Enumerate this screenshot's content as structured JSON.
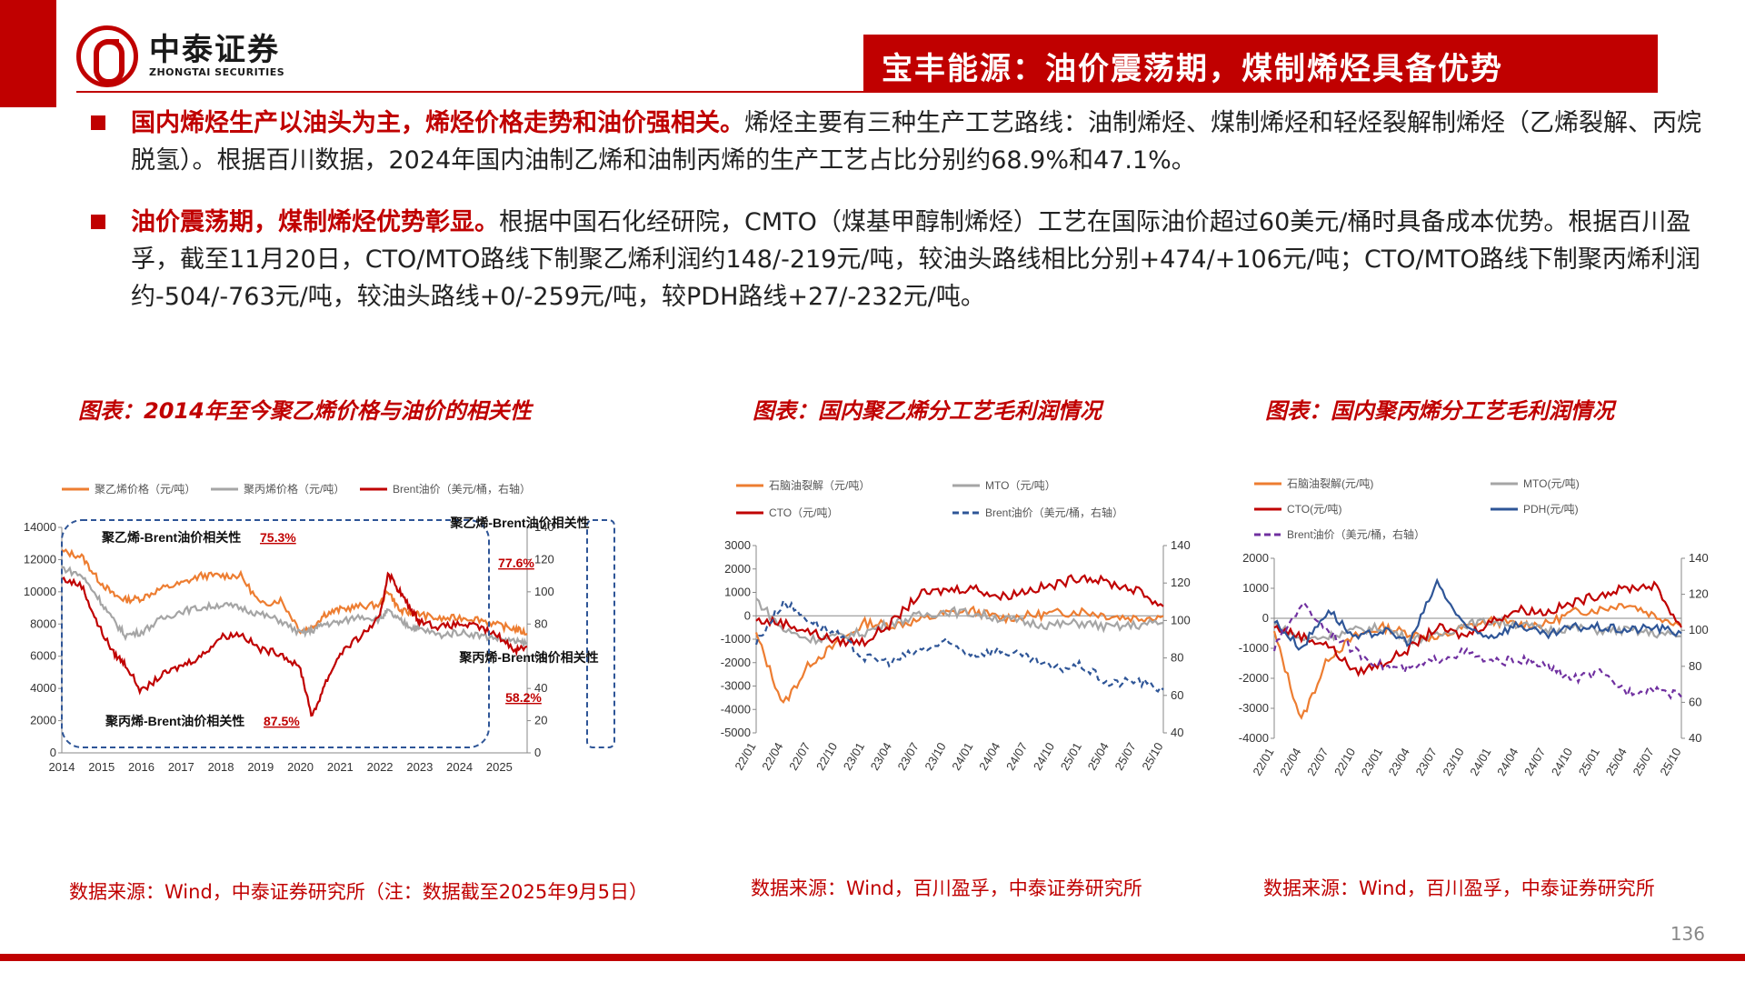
{
  "header": {
    "logo_cn": "中泰证券",
    "logo_en": "ZHONGTAI SECURITIES",
    "title": "宝丰能源：油价震荡期，煤制烯烃具备优势"
  },
  "bullets": [
    {
      "highlight": "国内烯烃生产以油头为主，烯烃价格走势和油价强相关。",
      "body": "烯烃主要有三种生产工艺路线：油制烯烃、煤制烯烃和轻烃裂解制烯烃（乙烯裂解、丙烷脱氢）。根据百川数据，2024年国内油制乙烯和油制丙烯的生产工艺占比分别约68.9%和47.1%。"
    },
    {
      "highlight": "油价震荡期，煤制烯烃优势彰显。",
      "body": "根据中国石化经研院，CMTO（煤基甲醇制烯烃）工艺在国际油价超过60美元/桶时具备成本优势。根据百川盈孚，截至11月20日，CTO/MTO路线下制聚乙烯利润约148/-219元/吨，较油头路线相比分别+474/+106元/吨；CTO/MTO路线下制聚丙烯利润约-504/-763元/吨，较油头路线+0/-259元/吨，较PDH路线+27/-232元/吨。"
    }
  ],
  "charts": [
    {
      "title": "图表：2014年至今聚乙烯价格与油价的相关性",
      "source": "数据来源：Wind，中泰证券研究所（注：数据截至2025年9月5日）"
    },
    {
      "title": "图表：国内聚乙烯分工艺毛利润情况",
      "source": "数据来源：Wind，百川盈孚，中泰证券研究所"
    },
    {
      "title": "图表：国内聚丙烯分工艺毛利润情况",
      "source": "数据来源：Wind，百川盈孚，中泰证券研究所"
    }
  ],
  "page_number": "136",
  "colors": {
    "brand_red": "#c00000",
    "orange": "#ed7d31",
    "gray": "#a5a5a5",
    "dark_red": "#c00000",
    "blue": "#2e5597",
    "purple": "#7030a0"
  },
  "chart_data": [
    {
      "type": "line",
      "legend": [
        "聚乙烯价格（元/吨）",
        "聚丙烯价格（元/吨）",
        "Brent油价（美元/桶，右轴）"
      ],
      "x_ticks": [
        "2014",
        "2015",
        "2016",
        "2017",
        "2018",
        "2019",
        "2020",
        "2021",
        "2022",
        "2023",
        "2024",
        "2025"
      ],
      "y_ticks": [
        "0",
        "2000",
        "4000",
        "6000",
        "8000",
        "10000",
        "12000",
        "14000"
      ],
      "y2_ticks": [
        "0",
        "20",
        "40",
        "60",
        "80",
        "100",
        "120",
        "140"
      ],
      "ylim": [
        0,
        14000
      ],
      "y2lim": [
        0,
        140
      ],
      "x": [
        2014,
        2014.5,
        2014.9,
        2015.3,
        2015.6,
        2016,
        2016.5,
        2017,
        2017.5,
        2018,
        2018.5,
        2019,
        2019.5,
        2020,
        2020.3,
        2020.6,
        2021,
        2021.5,
        2022,
        2022.2,
        2022.5,
        2022.8,
        2023,
        2023.5,
        2024,
        2024.5,
        2025,
        2025.4,
        2025.7
      ],
      "series": [
        {
          "name": "聚乙烯价格（元/吨）",
          "axis": "left",
          "values": [
            12500,
            12200,
            10800,
            9800,
            9500,
            9600,
            10200,
            10500,
            11000,
            11000,
            11000,
            9200,
            9500,
            7600,
            7800,
            8600,
            8900,
            9100,
            9200,
            10100,
            8800,
            8700,
            8600,
            8300,
            8400,
            8300,
            7900,
            7700,
            7400
          ]
        },
        {
          "name": "聚丙烯价格（元/吨）",
          "axis": "left",
          "values": [
            11500,
            11000,
            9700,
            8200,
            7300,
            7500,
            8300,
            8800,
            9000,
            9200,
            9000,
            8600,
            8200,
            7400,
            7600,
            8000,
            8100,
            8500,
            8300,
            8800,
            8200,
            7800,
            7700,
            7300,
            7500,
            7300,
            7100,
            6900,
            6800
          ]
        },
        {
          "name": "Brent油价（美元/桶，右轴）",
          "axis": "right",
          "values": [
            108,
            104,
            80,
            62,
            55,
            38,
            48,
            54,
            60,
            72,
            74,
            64,
            62,
            52,
            22,
            42,
            62,
            72,
            84,
            112,
            100,
            88,
            82,
            78,
            80,
            78,
            72,
            64,
            66
          ]
        }
      ],
      "annotations": [
        {
          "text": "聚乙烯-Brent油价相关性",
          "value": "75.3%"
        },
        {
          "text": "聚丙烯-Brent油价相关性",
          "value": "87.5%"
        },
        {
          "text": "聚乙烯-Brent油价相关性",
          "value": "77.6%"
        },
        {
          "text": "聚丙烯-Brent油价相关性",
          "value": "58.2%"
        }
      ]
    },
    {
      "type": "line",
      "legend": [
        "石脑油裂解（元/吨）",
        "MTO（元/吨）",
        "CTO（元/吨）",
        "Brent油价（美元/桶，右轴）"
      ],
      "x_ticks": [
        "22/01",
        "22/04",
        "22/07",
        "22/10",
        "23/01",
        "23/04",
        "23/07",
        "23/10",
        "24/01",
        "24/04",
        "24/07",
        "24/10",
        "25/01",
        "25/04",
        "25/07",
        "25/10"
      ],
      "y_ticks": [
        "3000",
        "2000",
        "1000",
        "0",
        "-1000",
        "-2000",
        "-3000",
        "-4000",
        "-5000"
      ],
      "y2_ticks": [
        "140",
        "120",
        "100",
        "80",
        "60",
        "40"
      ],
      "ylim": [
        -5000,
        3000
      ],
      "y2lim": [
        40,
        140
      ],
      "x": [
        0,
        1,
        2,
        3,
        4,
        5,
        6,
        7,
        8,
        9,
        10,
        11,
        12,
        13,
        14,
        15
      ],
      "series": [
        {
          "name": "石脑油裂解（元/吨）",
          "axis": "left",
          "values": [
            -800,
            -3800,
            -2000,
            -1200,
            -300,
            -400,
            -200,
            100,
            200,
            -100,
            0,
            100,
            200,
            0,
            -100,
            0
          ]
        },
        {
          "name": "MTO（元/吨）",
          "axis": "left",
          "values": [
            700,
            -600,
            -1000,
            -900,
            -700,
            -300,
            0,
            200,
            100,
            -100,
            -300,
            -400,
            -300,
            -500,
            -400,
            -300
          ]
        },
        {
          "name": "CTO（元/吨）",
          "axis": "left",
          "values": [
            -200,
            -300,
            -700,
            -1100,
            -1100,
            -300,
            900,
            1100,
            1200,
            800,
            1100,
            1300,
            1700,
            1400,
            1100,
            400
          ]
        },
        {
          "name": "Brent油价（美元/桶，右轴）",
          "axis": "right",
          "values": [
            88,
            110,
            100,
            92,
            80,
            78,
            84,
            88,
            82,
            84,
            80,
            74,
            76,
            66,
            68,
            63
          ]
        }
      ]
    },
    {
      "type": "line",
      "legend": [
        "石脑油裂解(元/吨)",
        "MTO(元/吨)",
        "CTO(元/吨)",
        "PDH(元/吨)",
        "Brent油价（美元/桶，右轴）"
      ],
      "x_ticks": [
        "22/01",
        "22/04",
        "22/07",
        "22/10",
        "23/01",
        "23/04",
        "23/07",
        "23/10",
        "24/01",
        "24/04",
        "24/07",
        "24/10",
        "25/01",
        "25/04",
        "25/07",
        "25/10"
      ],
      "y_ticks": [
        "2000",
        "1000",
        "0",
        "-1000",
        "-2000",
        "-3000",
        "-4000"
      ],
      "y2_ticks": [
        "140",
        "120",
        "100",
        "80",
        "60",
        "40"
      ],
      "ylim": [
        -4000,
        2000
      ],
      "y2lim": [
        40,
        140
      ],
      "x": [
        0,
        1,
        2,
        3,
        4,
        5,
        6,
        7,
        8,
        9,
        10,
        11,
        12,
        13,
        14,
        15
      ],
      "series": [
        {
          "name": "石脑油裂解(元/吨)",
          "axis": "left",
          "values": [
            -500,
            -3400,
            -1300,
            -600,
            -300,
            -500,
            -700,
            -300,
            -100,
            -200,
            -200,
            200,
            300,
            500,
            100,
            -200
          ]
        },
        {
          "name": "MTO(元/吨)",
          "axis": "left",
          "values": [
            -200,
            -700,
            -600,
            -400,
            -300,
            -700,
            -600,
            -200,
            -100,
            -200,
            -400,
            -300,
            -400,
            -400,
            -500,
            -600
          ]
        },
        {
          "name": "CTO(元/吨)",
          "axis": "left",
          "values": [
            -300,
            -600,
            -900,
            -1800,
            -1500,
            -1000,
            -300,
            -600,
            -100,
            300,
            200,
            500,
            800,
            1000,
            1100,
            -300
          ]
        },
        {
          "name": "PDH(元/吨)",
          "axis": "left",
          "values": [
            -100,
            -1000,
            300,
            -700,
            -400,
            -800,
            1200,
            -300,
            -600,
            -200,
            -600,
            -300,
            -300,
            -400,
            -300,
            -500
          ]
        },
        {
          "name": "Brent油价（美元/桶，右轴）",
          "axis": "right",
          "values": [
            90,
            115,
            100,
            88,
            80,
            78,
            84,
            88,
            82,
            84,
            80,
            73,
            76,
            66,
            68,
            63
          ]
        }
      ]
    }
  ]
}
